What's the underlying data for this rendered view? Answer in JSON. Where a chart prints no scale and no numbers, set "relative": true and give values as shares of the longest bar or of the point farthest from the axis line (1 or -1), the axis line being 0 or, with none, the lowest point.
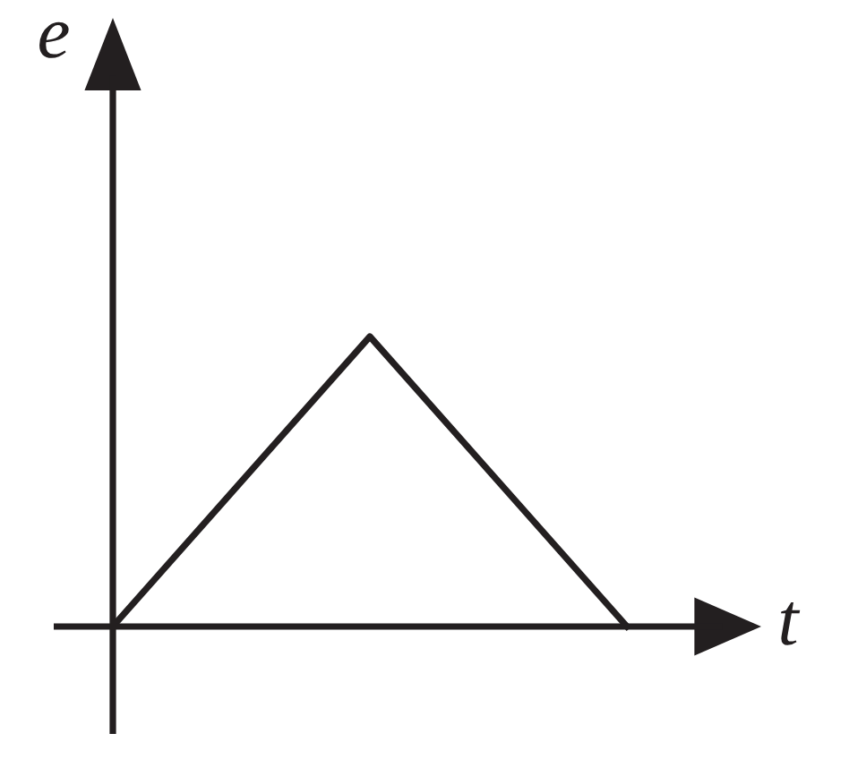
{
  "chart_data": {
    "type": "line",
    "relative": true,
    "xlabel": "t",
    "ylabel": "e",
    "categories": [
      null,
      null,
      null
    ],
    "series": [
      {
        "color": "#231f20",
        "values": [
          0,
          1,
          0
        ]
      }
    ],
    "legend": false,
    "marker": "none",
    "line_style": "solid"
  }
}
